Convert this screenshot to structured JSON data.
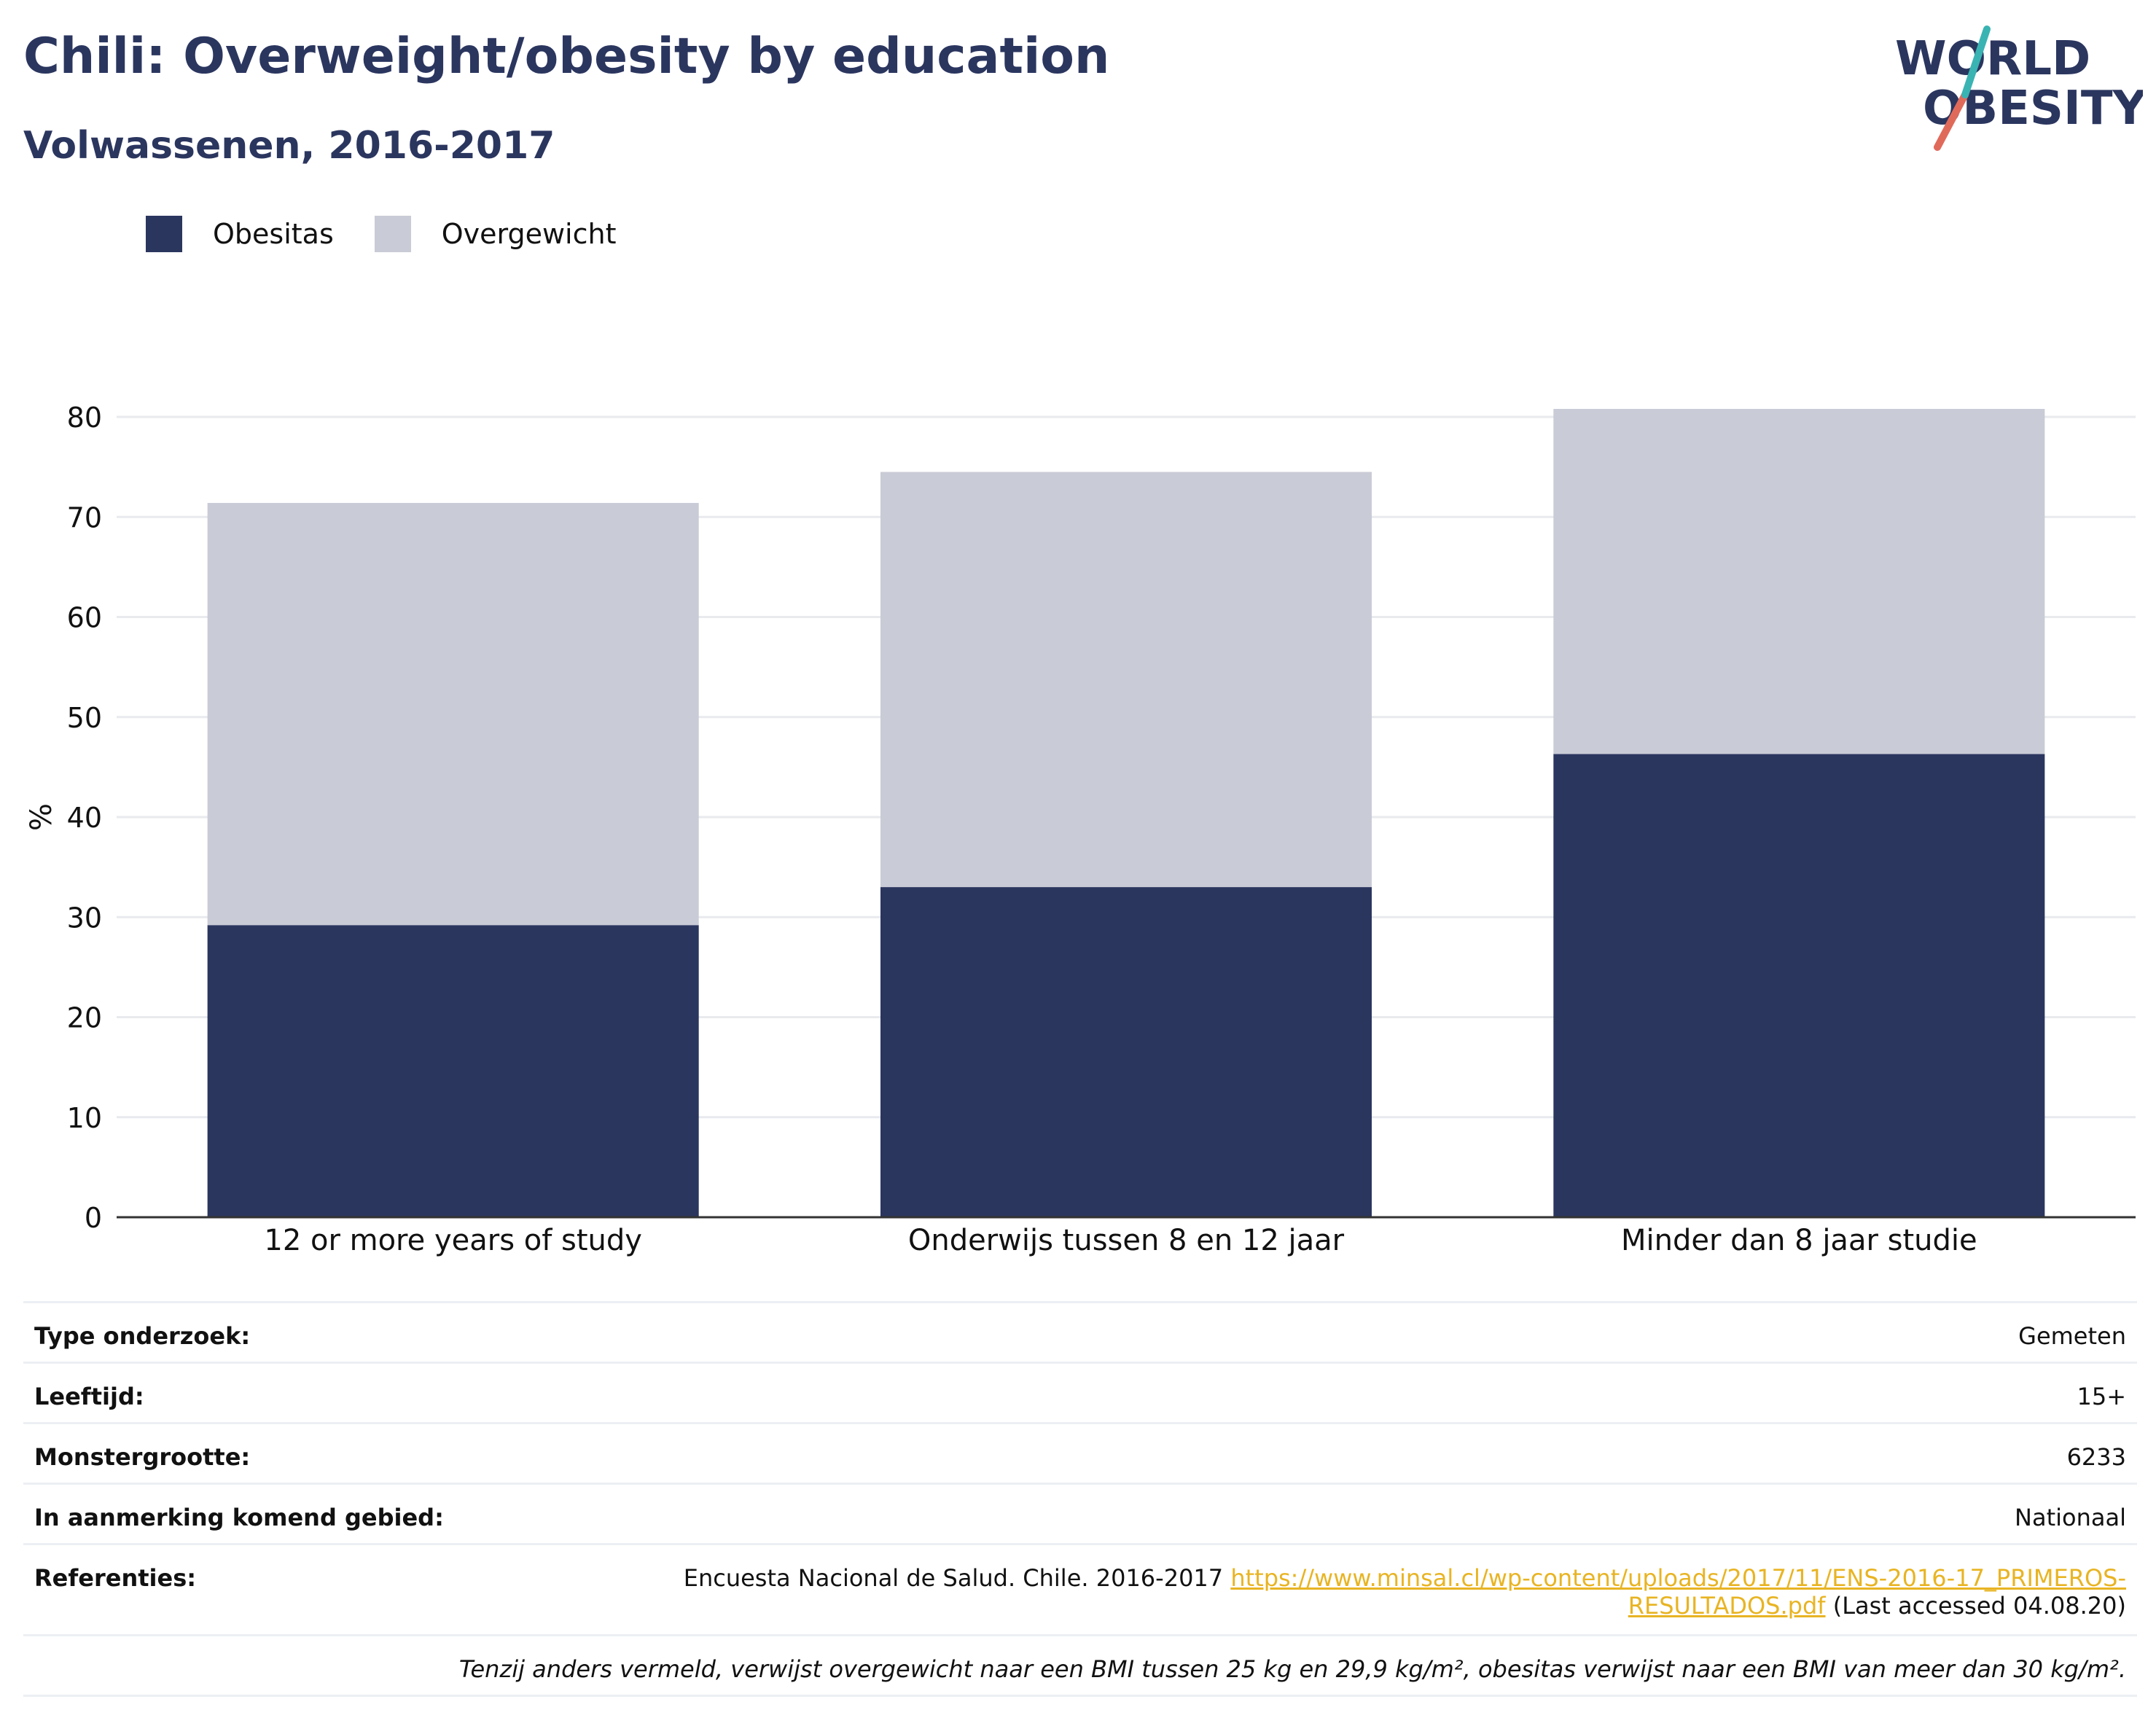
{
  "header": {
    "title": "Chili: Overweight/obesity by education",
    "subtitle": "Volwassenen, 2016-2017"
  },
  "logo": {
    "line1": "WORLD",
    "line2": "OBESITY"
  },
  "legend": [
    {
      "label": "Obesitas",
      "color": "#2b365f"
    },
    {
      "label": "Overgewicht",
      "color": "#c9cbd6"
    }
  ],
  "chart_data": {
    "type": "bar",
    "stacked": true,
    "categories": [
      "12 or more years of study",
      "Onderwijs tussen 8 en 12 jaar",
      "Minder dan 8 jaar studie"
    ],
    "series": [
      {
        "name": "Obesitas",
        "values": [
          29.2,
          33.0,
          46.3
        ],
        "color": "#2b365f"
      },
      {
        "name": "Overgewicht",
        "values": [
          42.2,
          41.5,
          34.5
        ],
        "color": "#c9cbd6"
      }
    ],
    "ylabel": "%",
    "ylim": [
      0,
      80
    ],
    "yticks": [
      0,
      10,
      20,
      30,
      40,
      50,
      60,
      70,
      80
    ],
    "grid": true
  },
  "info": {
    "rows": [
      {
        "key": "Type onderzoek:",
        "value": "Gemeten"
      },
      {
        "key": "Leeftijd:",
        "value": "15+"
      },
      {
        "key": "Monstergrootte:",
        "value": "6233"
      },
      {
        "key": "In aanmerking komend gebied:",
        "value": "Nationaal"
      }
    ],
    "references": {
      "key": "Referenties:",
      "text": "Encuesta Nacional de Salud. Chile. 2016-2017",
      "link_line1": "https://www.minsal.cl/wp-content/uploads/2017/11/ENS-2016-17_PRIMEROS-",
      "link_line2": "RESULTADOS.pdf",
      "accessed": "(Last accessed 04.08.20)"
    },
    "note": "Tenzij anders vermeld, verwijst overgewicht naar een BMI tussen 25 kg en 29,9 kg/m², obesitas verwijst naar een BMI van meer dan 30 kg/m²."
  }
}
